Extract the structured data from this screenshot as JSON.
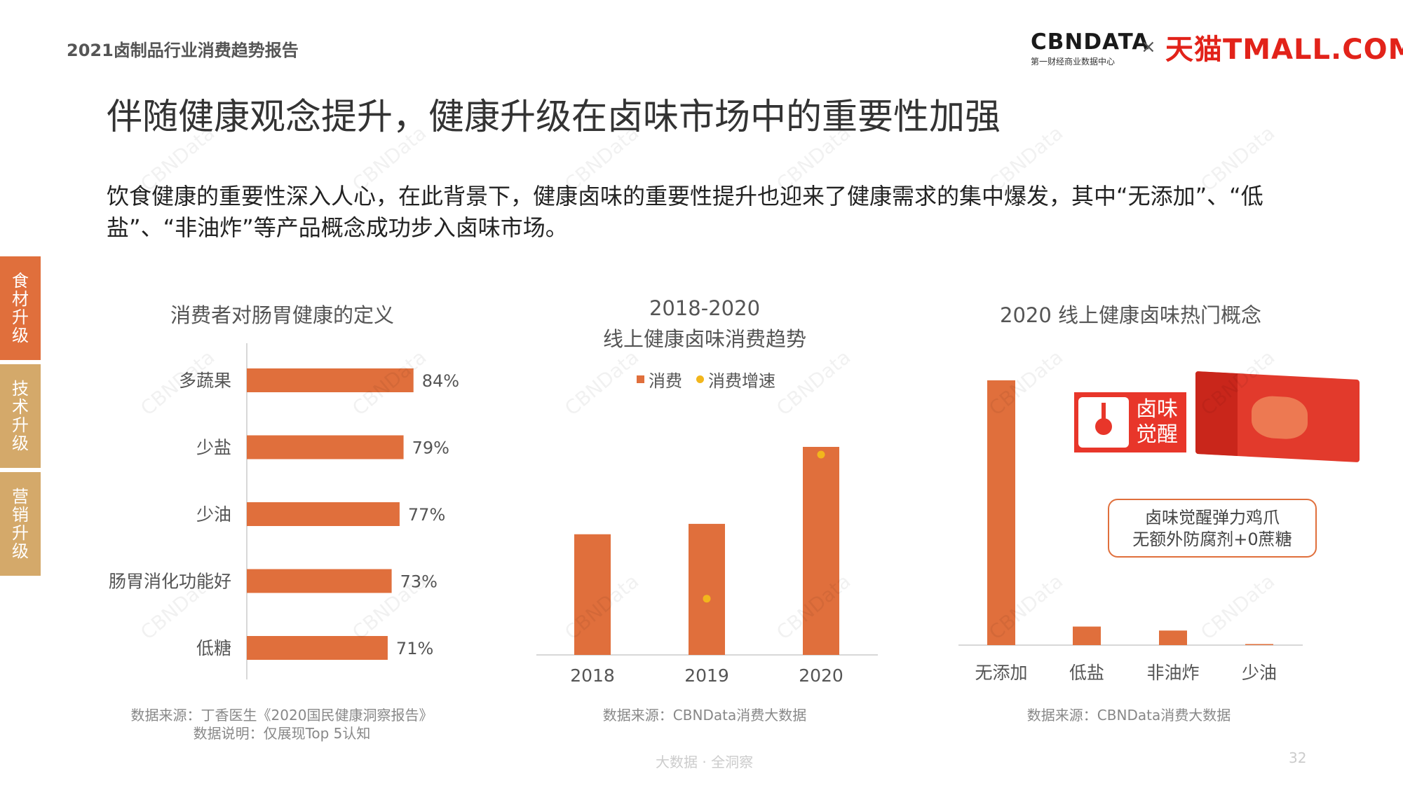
{
  "header": {
    "report_title": "2021卤制品行业消费趋势报告",
    "logo_cbn": "CBNDATA",
    "logo_cbn_sub": "第一财经商业数据中心",
    "logo_separator": "×",
    "logo_tmall": "天猫TMALL.COM"
  },
  "main_title": "伴随健康观念提升，健康升级在卤味市场中的重要性加强",
  "intro": "饮食健康的重要性深入人心，在此背景下，健康卤味的重要性提升也迎来了健康需求的集中爆发，其中“无添加”、“低盐”、“非油炸”等产品概念成功步入卤味市场。",
  "side_tabs": [
    {
      "label": "食材升级",
      "active": true
    },
    {
      "label": "技术升级",
      "active": false
    },
    {
      "label": "营销升级",
      "active": false
    }
  ],
  "colors": {
    "bar": "#e06f3c",
    "dot": "#f2b61c",
    "axis": "#cccccc"
  },
  "chart_data": [
    {
      "type": "bar",
      "orientation": "horizontal",
      "title": "消费者对肠胃健康的定义",
      "categories": [
        "多蔬果",
        "少盐",
        "少油",
        "肠胃消化功能好",
        "低糖"
      ],
      "values": [
        84,
        79,
        77,
        73,
        71
      ],
      "value_labels": [
        "84%",
        "79%",
        "77%",
        "73%",
        "71%"
      ],
      "unit": "%",
      "source": "数据来源：丁香医生《2020国民健康洞察报告》",
      "note": "数据说明：仅展现Top 5认知"
    },
    {
      "type": "bar",
      "title_line1": "2018-2020",
      "title_line2": "线上健康卤味消费趋势",
      "categories": [
        "2018",
        "2019",
        "2020"
      ],
      "series": [
        {
          "name": "消费",
          "kind": "bar",
          "values": [
            58,
            63,
            100
          ]
        },
        {
          "name": "消费增速",
          "kind": "dot",
          "values": [
            null,
            15,
            100
          ]
        }
      ],
      "ylim": [
        0,
        100
      ],
      "source": "数据来源：CBNData消费大数据"
    },
    {
      "type": "bar",
      "title": "2020 线上健康卤味热门概念",
      "categories": [
        "无添加",
        "低盐",
        "非油炸",
        "少油"
      ],
      "values": [
        100,
        7,
        5.5,
        0.4
      ],
      "ylim": [
        0,
        100
      ],
      "source": "数据来源：CBNData消费大数据",
      "callout": {
        "line1": "卤味觉醒弹力鸡爪",
        "line2": "无额外防腐剂+0蔗糖"
      },
      "product_logo_text": "卤味觉醒"
    }
  ],
  "footer": {
    "tagline": "大数据 · 全洞察",
    "page": "32"
  },
  "watermark": "CBNData"
}
